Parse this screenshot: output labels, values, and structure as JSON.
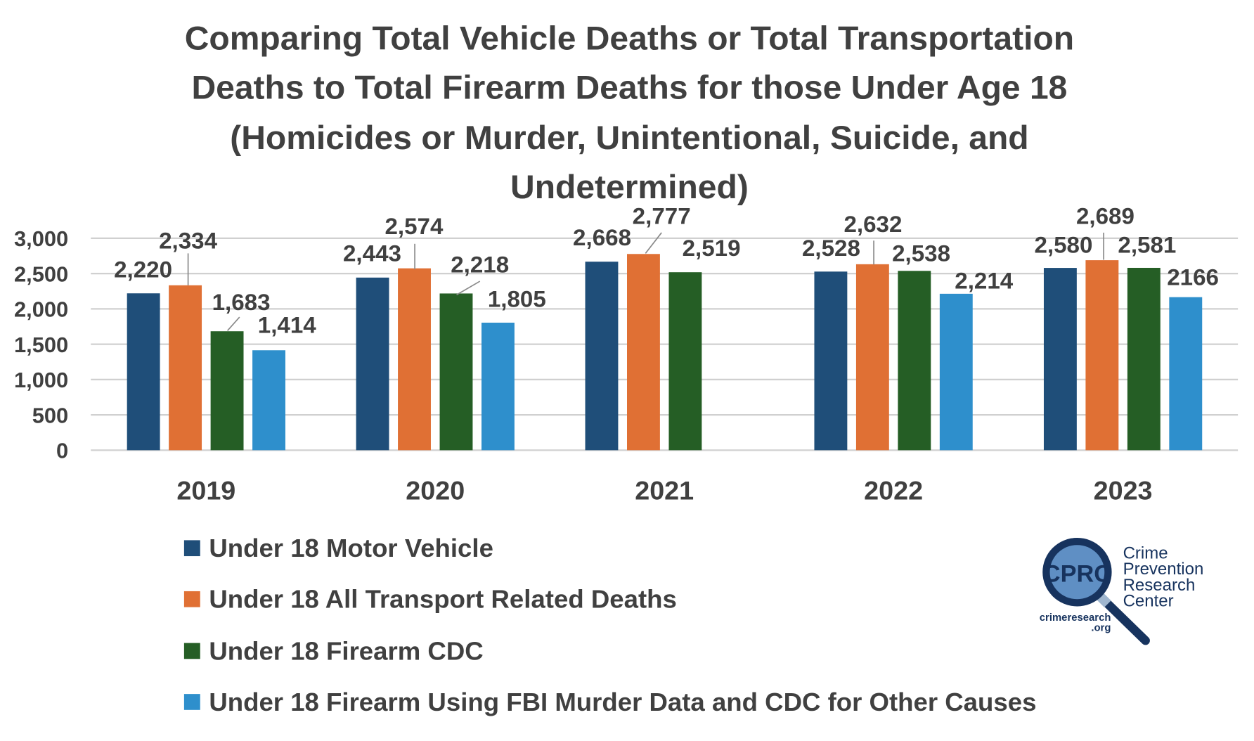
{
  "chart_data": {
    "type": "bar",
    "title_lines": [
      "Comparing Total Vehicle Deaths or Total Transportation",
      "Deaths to Total Firearm Deaths for those Under Age 18",
      "(Homicides or Murder, Unintentional, Suicide, and",
      "Undetermined)"
    ],
    "categories": [
      "2019",
      "2020",
      "2021",
      "2022",
      "2023"
    ],
    "ylim": [
      0,
      3000
    ],
    "yticks": [
      0,
      500,
      1000,
      1500,
      2000,
      2500,
      3000
    ],
    "ytick_labels": [
      "0",
      "500",
      "1,000",
      "1,500",
      "2,000",
      "2,500",
      "3,000"
    ],
    "grid": true,
    "legend_placement": "bottom-left",
    "series": [
      {
        "name": "Under 18 Motor Vehicle",
        "color": "#1f4e79",
        "values": [
          2220,
          2443,
          2668,
          2528,
          2580
        ],
        "labels": [
          "2,220",
          "2,443",
          "2,668",
          "2,528",
          "2,580"
        ]
      },
      {
        "name": "Under 18 All Transport Related Deaths",
        "color": "#e07034",
        "values": [
          2334,
          2574,
          2777,
          2632,
          2689
        ],
        "labels": [
          "2,334",
          "2,574",
          "2,777",
          "2,632",
          "2,689"
        ]
      },
      {
        "name": "Under 18 Firearm CDC",
        "color": "#255e25",
        "values": [
          1683,
          2218,
          2519,
          2538,
          2581
        ],
        "labels": [
          "1,683",
          "2,218",
          "2,519",
          "2,538",
          "2,581"
        ]
      },
      {
        "name": "Under 18 Firearm Using FBI Murder Data and CDC for Other Causes",
        "color": "#2e8fcc",
        "values": [
          1414,
          1805,
          null,
          2214,
          2166
        ],
        "labels": [
          "1,414",
          "1,805",
          null,
          "2,214",
          "2166"
        ]
      }
    ]
  },
  "logo": {
    "monogram": "CPRC",
    "name_lines": [
      "Crime",
      "Prevention",
      "Research",
      "Center"
    ],
    "url_lines": [
      "crimeresearch",
      ".org"
    ]
  }
}
